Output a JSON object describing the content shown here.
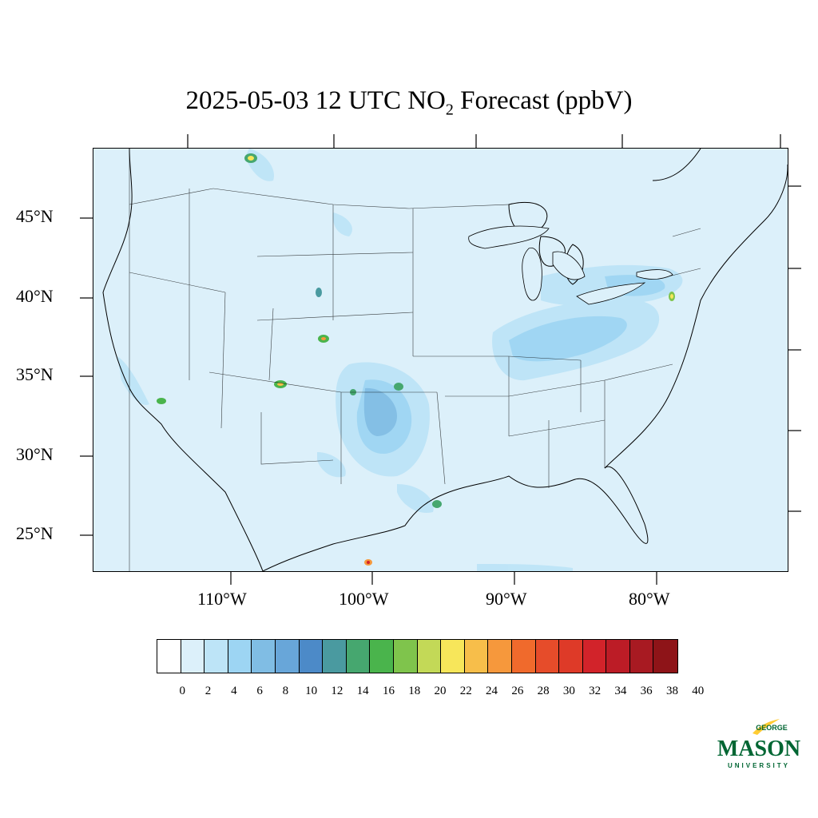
{
  "title": {
    "prefix": "2025-05-03 12 UTC NO",
    "subscript": "2",
    "suffix": " Forecast (ppbV)"
  },
  "axes": {
    "lat_labels": [
      "45°N",
      "40°N",
      "35°N",
      "30°N",
      "25°N"
    ],
    "lon_labels": [
      "110°W",
      "100°W",
      "90°W",
      "80°W"
    ]
  },
  "colorbar": {
    "colors": [
      "#ffffff",
      "#dcf0fa",
      "#bde4f7",
      "#9dd5f3",
      "#80bde4",
      "#68a6d9",
      "#4c8ac8",
      "#4a9aa0",
      "#46a76f",
      "#4ab44c",
      "#7fc44c",
      "#c3d957",
      "#f7e65a",
      "#f7be4a",
      "#f6983c",
      "#f06a2c",
      "#e64c2a",
      "#de3a28",
      "#d2232a",
      "#bc1c26",
      "#a81a22",
      "#8e1418"
    ],
    "tick_labels": [
      "0",
      "2",
      "4",
      "6",
      "8",
      "10",
      "12",
      "14",
      "16",
      "18",
      "20",
      "22",
      "24",
      "26",
      "28",
      "30",
      "32",
      "34",
      "36",
      "38",
      "40"
    ]
  },
  "logo": {
    "line1": "GEORGE",
    "line2": "MASON",
    "line3": "UNIVERSITY",
    "brand_green": "#006633",
    "brand_gold": "#ffcc33"
  }
}
